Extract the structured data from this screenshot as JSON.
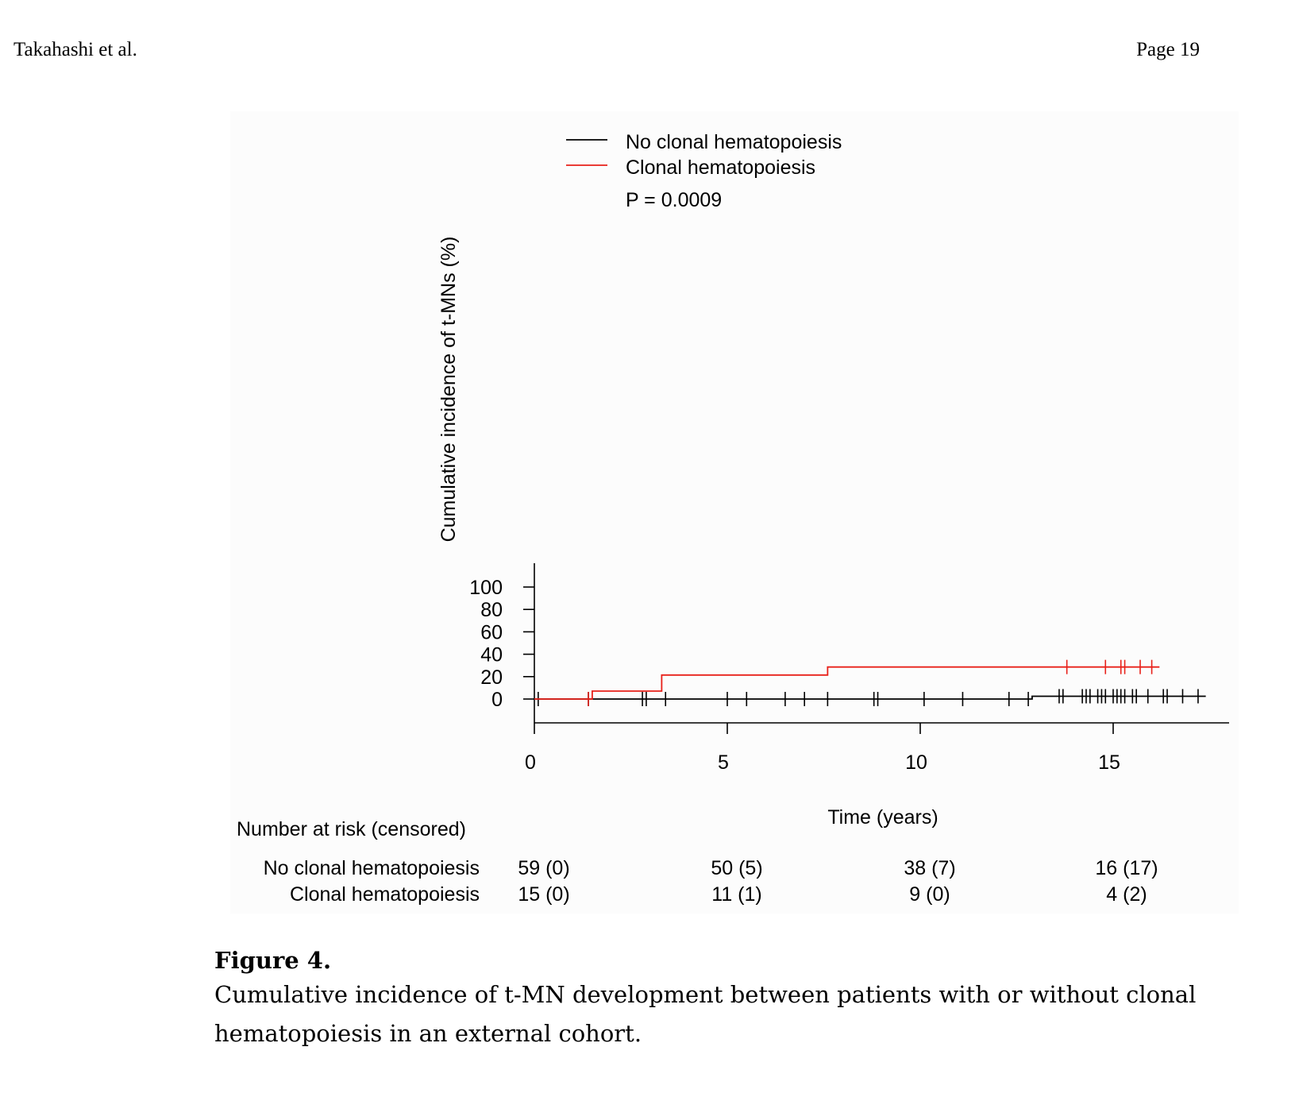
{
  "header": {
    "author": "Takahashi et al.",
    "page": "Page 19"
  },
  "caption": {
    "label": "Figure 4.",
    "text": "Cumulative incidence of t-MN development between patients with or without clonal hematopoiesis in an external cohort."
  },
  "chart_data": {
    "type": "line",
    "step": true,
    "title": "",
    "xlabel": "Time (years)",
    "ylabel": "Cumulative incidence of t-MNs (%)",
    "xlim": [
      0,
      18
    ],
    "ylim": [
      0,
      100
    ],
    "xticks": [
      "0",
      "5",
      "10",
      "15"
    ],
    "yticks": [
      "0",
      "20",
      "40",
      "60",
      "80",
      "100"
    ],
    "grid": false,
    "legend_position": "top-left",
    "p_value_text": "P = 0.0009",
    "series": [
      {
        "name": "No clonal hematopoiesis",
        "color": "#000000",
        "steps": [
          [
            0,
            0
          ],
          [
            12.9,
            0
          ],
          [
            12.9,
            2.5
          ],
          [
            17.4,
            2.5
          ]
        ],
        "censored": [
          [
            0.1,
            0
          ],
          [
            1.4,
            0
          ],
          [
            2.8,
            0
          ],
          [
            2.9,
            0
          ],
          [
            3.4,
            0
          ],
          [
            5.0,
            0
          ],
          [
            5.5,
            0
          ],
          [
            6.5,
            0
          ],
          [
            7.0,
            0
          ],
          [
            7.6,
            0
          ],
          [
            8.8,
            0
          ],
          [
            8.9,
            0
          ],
          [
            10.1,
            0
          ],
          [
            11.1,
            0
          ],
          [
            12.3,
            0
          ],
          [
            12.8,
            0
          ],
          [
            13.6,
            2.5
          ],
          [
            13.7,
            2.5
          ],
          [
            14.2,
            2.5
          ],
          [
            14.3,
            2.5
          ],
          [
            14.4,
            2.5
          ],
          [
            14.6,
            2.5
          ],
          [
            14.7,
            2.5
          ],
          [
            14.8,
            2.5
          ],
          [
            15.0,
            2.5
          ],
          [
            15.1,
            2.5
          ],
          [
            15.2,
            2.5
          ],
          [
            15.3,
            2.5
          ],
          [
            15.5,
            2.5
          ],
          [
            15.6,
            2.5
          ],
          [
            15.9,
            2.5
          ],
          [
            16.3,
            2.5
          ],
          [
            16.4,
            2.5
          ],
          [
            16.8,
            2.5
          ],
          [
            17.2,
            2.5
          ]
        ]
      },
      {
        "name": "Clonal hematopoiesis",
        "color": "#e8211a",
        "steps": [
          [
            0,
            0
          ],
          [
            1.5,
            0
          ],
          [
            1.5,
            7.1
          ],
          [
            3.3,
            7.1
          ],
          [
            3.3,
            21.4
          ],
          [
            7.6,
            21.4
          ],
          [
            7.6,
            28.6
          ],
          [
            16.2,
            28.6
          ]
        ],
        "censored": [
          [
            1.4,
            0
          ],
          [
            13.8,
            28.6
          ],
          [
            14.8,
            28.6
          ],
          [
            15.2,
            28.6
          ],
          [
            15.3,
            28.6
          ],
          [
            15.7,
            28.6
          ],
          [
            16.0,
            28.6
          ]
        ]
      }
    ],
    "risk_table": {
      "title": "Number at risk (censored)",
      "rows": [
        {
          "label": "No clonal hematopoiesis",
          "values": [
            "59 (0)",
            "50 (5)",
            "38 (7)",
            "16 (17)"
          ]
        },
        {
          "label": "Clonal hematopoiesis",
          "values": [
            "15 (0)",
            "11 (1)",
            "9 (0)",
            "4 (2)"
          ]
        }
      ]
    }
  }
}
